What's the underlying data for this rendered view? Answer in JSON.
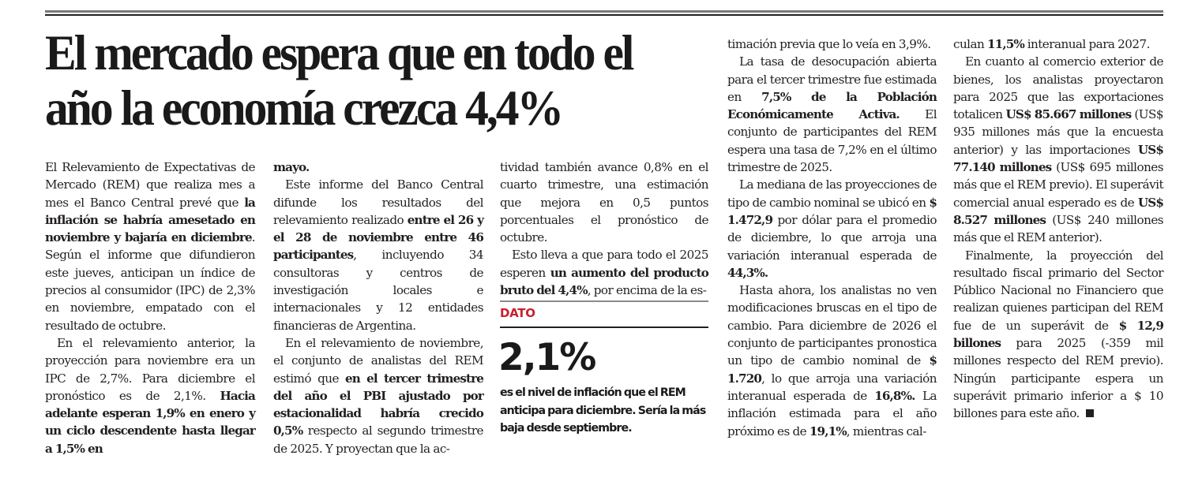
{
  "article": {
    "headline": "El mercado espera que en todo el año la economía crezca 4,4%",
    "columns": [
      {
        "paragraphs": [
          {
            "indent": false,
            "segments": [
              {
                "t": "El Relevamiento de Expectativas de Mercado (REM) que realiza mes a mes el Banco Central prevé que ",
                "b": false
              },
              {
                "t": "la inflación se habría amesetado en noviembre y bajaría en diciembre",
                "b": true
              },
              {
                "t": ". Según el informe que difundieron este jueves, anticipan un índice de precios al consumidor (IPC) de 2,3% en noviembre, empatado con el resultado de octubre.",
                "b": false
              }
            ]
          },
          {
            "indent": true,
            "segments": [
              {
                "t": "En el relevamiento anterior, la proyección para noviembre era un IPC de 2,7%. Para diciembre el pronóstico es de 2,1%. ",
                "b": false
              },
              {
                "t": "Hacia adelante esperan 1,9% en enero y un ciclo descendente hasta llegar a 1,5% en",
                "b": true
              }
            ]
          }
        ]
      },
      {
        "paragraphs": [
          {
            "indent": false,
            "segments": [
              {
                "t": "mayo.",
                "b": true
              }
            ]
          },
          {
            "indent": true,
            "segments": [
              {
                "t": "Este informe del Banco Central difunde los resultados del relevamiento realizado ",
                "b": false
              },
              {
                "t": "entre el 26 y el 28 de noviembre entre 46 participantes",
                "b": true
              },
              {
                "t": ", incluyendo 34 consultoras y centros de investigación locales e internacionales y 12 entidades financieras de Argentina.",
                "b": false
              }
            ]
          },
          {
            "indent": true,
            "segments": [
              {
                "t": "En el relevamiento de noviembre, el conjunto de analistas del REM estimó que ",
                "b": false
              },
              {
                "t": "en el tercer trimestre del año el PBI ajustado por estacionalidad habría crecido 0,5%",
                "b": true
              },
              {
                "t": " respecto al segundo trimestre de 2025. Y proyectan que la ac-",
                "b": false
              }
            ]
          }
        ]
      },
      {
        "paragraphs": [
          {
            "indent": false,
            "segments": [
              {
                "t": "tividad también avance 0,8% en el cuarto trimestre, una estimación que mejora en 0,5 puntos porcentuales el pronóstico de octubre.",
                "b": false
              }
            ]
          },
          {
            "indent": true,
            "segments": [
              {
                "t": "Esto lleva a que para todo el 2025 esperen ",
                "b": false
              },
              {
                "t": "un aumento del producto bruto del 4,4%",
                "b": true
              },
              {
                "t": ", por encima de la es-",
                "b": false
              }
            ]
          }
        ]
      },
      {
        "paragraphs": [
          {
            "indent": false,
            "segments": [
              {
                "t": "timación previa que lo veía en 3,9%.",
                "b": false
              }
            ]
          },
          {
            "indent": true,
            "segments": [
              {
                "t": "La tasa de desocupación abierta para el tercer trimestre fue estimada en ",
                "b": false
              },
              {
                "t": "7,5% de la Población Económicamente Activa.",
                "b": true
              },
              {
                "t": " El conjunto de participantes del REM espera una tasa de 7,2% en el último trimestre de 2025.",
                "b": false
              }
            ]
          },
          {
            "indent": true,
            "segments": [
              {
                "t": "La mediana de las proyecciones de tipo de cambio nominal se ubicó en ",
                "b": false
              },
              {
                "t": "$ 1.472,9",
                "b": true
              },
              {
                "t": " por dólar para el promedio de diciembre, lo que arroja una variación interanual esperada de ",
                "b": false
              },
              {
                "t": "44,3%.",
                "b": true
              }
            ]
          },
          {
            "indent": true,
            "segments": [
              {
                "t": "Hasta ahora, los analistas no ven modificaciones bruscas en el tipo de cambio. Para diciembre de 2026 el conjunto de participantes pronostica un tipo de cambio nominal de ",
                "b": false
              },
              {
                "t": "$ 1.720",
                "b": true
              },
              {
                "t": ", lo que arroja una variación interanual esperada de ",
                "b": false
              },
              {
                "t": "16,8%.",
                "b": true
              },
              {
                "t": " La inflación estimada para el año próximo es de ",
                "b": false
              },
              {
                "t": "19,1%",
                "b": true
              },
              {
                "t": ", mientras cal-",
                "b": false
              }
            ]
          }
        ]
      },
      {
        "paragraphs": [
          {
            "indent": false,
            "segments": [
              {
                "t": "culan ",
                "b": false
              },
              {
                "t": "11,5%",
                "b": true
              },
              {
                "t": " interanual para 2027.",
                "b": false
              }
            ]
          },
          {
            "indent": true,
            "segments": [
              {
                "t": "En cuanto al comercio exterior de bienes, los analistas proyectaron para 2025 que las exportaciones totalicen ",
                "b": false
              },
              {
                "t": "US$ 85.667 millones",
                "b": true
              },
              {
                "t": " (US$ 935 millones más que la encuesta anterior) y las importaciones ",
                "b": false
              },
              {
                "t": "US$ 77.140 millones",
                "b": true
              },
              {
                "t": " (US$ 695 millones más que el REM previo). El superávit comercial anual esperado es de ",
                "b": false
              },
              {
                "t": "US$ 8.527 millones",
                "b": true
              },
              {
                "t": " (US$ 240 millones más que el REM anterior).",
                "b": false
              }
            ]
          },
          {
            "indent": true,
            "end": true,
            "segments": [
              {
                "t": "Finalmente, la proyección del resultado fiscal primario del Sector Público Nacional no Financiero que realizan quienes participan del REM fue de un superávit de ",
                "b": false
              },
              {
                "t": "$ 12,9 billones",
                "b": true
              },
              {
                "t": " para 2025 (-359 mil millones respecto del REM previo). Ningún participante espera un superávit primario inferior a $ 10 billones para este año.",
                "b": false
              }
            ]
          }
        ]
      }
    ]
  },
  "dato_box": {
    "label": "DATO",
    "number": "2,1%",
    "text": "es el nivel de inflación que el REM anticipa para diciembre.  Sería la más baja desde septiembre.",
    "accent_color": "#c8202f"
  },
  "end_mark_icon": "end-square-icon"
}
